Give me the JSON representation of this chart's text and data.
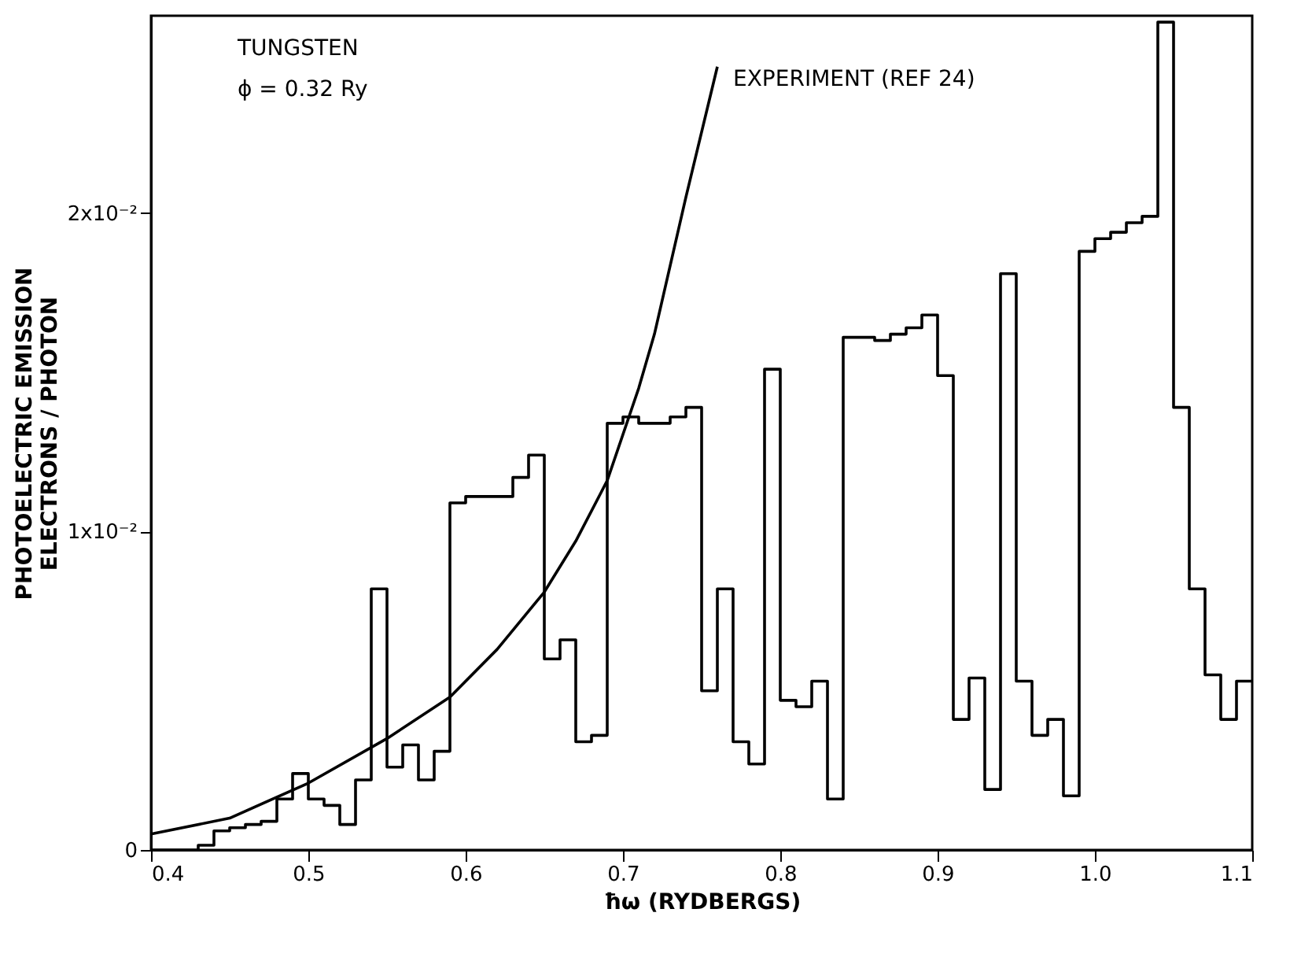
{
  "chart_data": {
    "type": "step",
    "xlabel": "ħω (RYDBERGS)",
    "ylabel": "PHOTOELECTRIC EMISSION\nELECTRONS / PHOTON",
    "annotations": [
      "TUNGSTEN",
      "ϕ = 0.32 Ry"
    ],
    "xlim": [
      0.4,
      1.1
    ],
    "xticks": [
      0.4,
      0.5,
      0.6,
      0.7,
      0.8,
      0.9,
      {
        "value": 1,
        "label": "1.0"
      },
      1.1
    ],
    "ylim": [
      0,
      0.0262
    ],
    "yticks": [
      0,
      {
        "value": 0.01,
        "label": "1x10⁻²"
      },
      {
        "value": 0.02,
        "label": "2x10⁻²"
      }
    ],
    "line_style": "solid",
    "series": [
      {
        "type": "step",
        "color": "#000000",
        "x": [
          0.4,
          0.43,
          0.44,
          0.45,
          0.46,
          0.47,
          0.48,
          0.49,
          0.5,
          0.51,
          0.52,
          0.53,
          0.54,
          0.55,
          0.56,
          0.57,
          0.58,
          0.59,
          0.6,
          0.61,
          0.62,
          0.63,
          0.64,
          0.65,
          0.66,
          0.67,
          0.68,
          0.69,
          0.7,
          0.71,
          0.72,
          0.73,
          0.74,
          0.75,
          0.76,
          0.77,
          0.78,
          0.79,
          0.8,
          0.81,
          0.82,
          0.83,
          0.84,
          0.85,
          0.86,
          0.87,
          0.88,
          0.89,
          0.9,
          0.91,
          0.92,
          0.93,
          0.94,
          0.95,
          0.96,
          0.97,
          0.98,
          0.99,
          1.0,
          1.01,
          1.02,
          1.03,
          1.04,
          1.05,
          1.06,
          1.07,
          1.08,
          1.09,
          1.1
        ],
        "values": [
          0,
          0.00015,
          0.0006,
          0.0007,
          0.0008,
          0.0009,
          0.0016,
          0.0024,
          0.0016,
          0.0014,
          0.0008,
          0.0022,
          0.0082,
          0.0026,
          0.0033,
          0.0022,
          0.0031,
          0.0109,
          0.0111,
          0.0111,
          0.0111,
          0.0117,
          0.0124,
          0.006,
          0.0066,
          0.0034,
          0.0036,
          0.0134,
          0.0136,
          0.0134,
          0.0134,
          0.0136,
          0.0139,
          0.005,
          0.0082,
          0.0034,
          0.0027,
          0.0151,
          0.0047,
          0.0045,
          0.0053,
          0.0016,
          0.0161,
          0.0161,
          0.016,
          0.0162,
          0.0164,
          0.0168,
          0.0149,
          0.0041,
          0.0054,
          0.0019,
          0.0181,
          0.0053,
          0.0036,
          0.0041,
          0.0017,
          0.0188,
          0.0192,
          0.0194,
          0.0197,
          0.0199,
          0.026,
          0.0139,
          0.0082,
          0.0055,
          0.0041,
          0.0053,
          0.0053
        ]
      },
      {
        "type": "line",
        "name": "EXPERIMENT (REF 24)",
        "color": "#000000",
        "x": [
          0.4,
          0.45,
          0.5,
          0.55,
          0.59,
          0.62,
          0.65,
          0.67,
          0.69,
          0.71,
          0.72,
          0.74,
          0.76
        ],
        "values": [
          0.0005,
          0.001,
          0.0021,
          0.0035,
          0.0048,
          0.0063,
          0.0081,
          0.0097,
          0.0116,
          0.0145,
          0.0162,
          0.0205,
          0.0246
        ]
      }
    ]
  }
}
